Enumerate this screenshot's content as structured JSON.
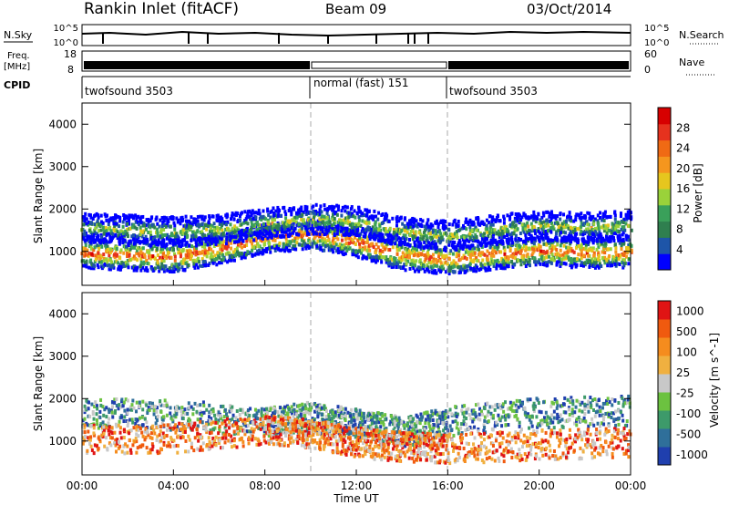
{
  "header": {
    "station": "Rankin Inlet (fitACF)",
    "beam": "Beam 09",
    "date": "03/Oct/2014"
  },
  "strips": {
    "nsky": {
      "label": "N.Sky",
      "right_label": "N.Search",
      "tick_top": "10^5",
      "tick_bottom": "10^0",
      "right_tick_top": "10^5",
      "right_tick_bottom": "10^0"
    },
    "freq": {
      "label_line1": "Freq.",
      "label_line2": "[MHz]",
      "tick_top": "18",
      "tick_bottom": "8",
      "right_label": "Nave",
      "right_tick_top": "60",
      "right_tick_bottom": "0"
    },
    "cpid": {
      "label": "CPID",
      "segments": [
        {
          "name": "twofsound 3503",
          "start_hour": 0,
          "end_hour": 10
        },
        {
          "name": "normal (fast) 151",
          "start_hour": 10,
          "end_hour": 16
        },
        {
          "name": "twofsound 3503",
          "start_hour": 16,
          "end_hour": 24
        }
      ]
    }
  },
  "chart_data": [
    {
      "type": "heatmap",
      "title": "Power",
      "ylabel": "Slant Range [km]",
      "xlim": [
        0,
        24
      ],
      "ylim": [
        200,
        4500
      ],
      "yticks": [
        1000,
        2000,
        3000,
        4000
      ],
      "colorbar": {
        "label": "Power [dB]",
        "ticks": [
          "4",
          "8",
          "12",
          "16",
          "20",
          "24",
          "28"
        ],
        "colors": [
          "#0000ff",
          "#1e55a8",
          "#2f7f4f",
          "#3aa05a",
          "#9ad23a",
          "#e6c61e",
          "#f5961e",
          "#f06a14",
          "#e6321e",
          "#d70000"
        ]
      },
      "bands": [
        {
          "x": [
            0,
            2,
            4,
            6,
            8,
            10,
            12,
            14,
            16,
            18,
            20,
            22,
            24
          ],
          "y": [
            1000,
            950,
            900,
            1100,
            1350,
            1450,
            1250,
            950,
            850,
            950,
            1050,
            1000,
            1000
          ],
          "value": 28
        },
        {
          "x": [
            0,
            2,
            4,
            6,
            8,
            10,
            12,
            14,
            16,
            18,
            20,
            22,
            24
          ],
          "y": [
            1600,
            1550,
            1500,
            1550,
            1700,
            1800,
            1750,
            1500,
            1400,
            1550,
            1650,
            1600,
            1650
          ],
          "value": 20
        }
      ]
    },
    {
      "type": "heatmap",
      "title": "Velocity",
      "xlabel": "Time UT",
      "ylabel": "Slant Range [km]",
      "xlim": [
        0,
        24
      ],
      "ylim": [
        200,
        4500
      ],
      "xticks": [
        "00:00",
        "04:00",
        "08:00",
        "12:00",
        "16:00",
        "20:00",
        "00:00"
      ],
      "yticks": [
        1000,
        2000,
        3000,
        4000
      ],
      "colorbar": {
        "label": "Velocity [m s^-1]",
        "ticks": [
          "1000",
          "500",
          "100",
          "25",
          "-25",
          "-100",
          "-500",
          "-1000"
        ],
        "colors": [
          "#1f3fae",
          "#2f6f9a",
          "#3d9a6a",
          "#6cc240",
          "#c8c8c8",
          "#f0b040",
          "#f58c1e",
          "#f05a0f",
          "#e01414"
        ]
      },
      "bands": [
        {
          "x": [
            0,
            4,
            8,
            10,
            12,
            14,
            16,
            20,
            24
          ],
          "y": [
            1700,
            1650,
            1500,
            1600,
            1450,
            1250,
            1500,
            1700,
            1750
          ],
          "sign": "mixed"
        },
        {
          "x": [
            0,
            4,
            8,
            10,
            12,
            14,
            16,
            20,
            24
          ],
          "y": [
            1100,
            1100,
            1300,
            1200,
            1000,
            900,
            850,
            950,
            1000
          ],
          "sign": "negative"
        }
      ]
    }
  ]
}
